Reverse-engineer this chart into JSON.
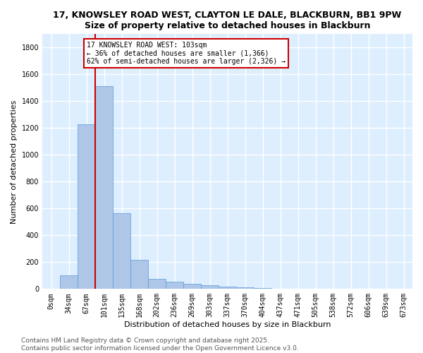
{
  "title_line1": "17, KNOWSLEY ROAD WEST, CLAYTON LE DALE, BLACKBURN, BB1 9PW",
  "title_line2": "Size of property relative to detached houses in Blackburn",
  "xlabel": "Distribution of detached houses by size in Blackburn",
  "ylabel": "Number of detached properties",
  "bar_labels": [
    "0sqm",
    "34sqm",
    "67sqm",
    "101sqm",
    "135sqm",
    "168sqm",
    "202sqm",
    "236sqm",
    "269sqm",
    "303sqm",
    "337sqm",
    "370sqm",
    "404sqm",
    "437sqm",
    "471sqm",
    "505sqm",
    "538sqm",
    "572sqm",
    "606sqm",
    "639sqm",
    "673sqm"
  ],
  "bar_values": [
    0,
    100,
    1230,
    1510,
    565,
    215,
    75,
    52,
    40,
    30,
    20,
    10,
    5,
    3,
    2,
    2,
    1,
    1,
    1,
    0,
    0
  ],
  "bar_color": "#aec6e8",
  "bar_edge_color": "#5b9bd5",
  "property_label": "17 KNOWSLEY ROAD WEST: 103sqm",
  "annotation_line1": "← 36% of detached houses are smaller (1,366)",
  "annotation_line2": "62% of semi-detached houses are larger (2,326) →",
  "vline_color": "#cc0000",
  "vline_x_bar_index": 3,
  "annotation_box_color": "#cc0000",
  "ylim": [
    0,
    1900
  ],
  "yticks": [
    0,
    200,
    400,
    600,
    800,
    1000,
    1200,
    1400,
    1600,
    1800
  ],
  "background_color": "#ddeeff",
  "grid_color": "#ffffff",
  "footer_line1": "Contains HM Land Registry data © Crown copyright and database right 2025.",
  "footer_line2": "Contains public sector information licensed under the Open Government Licence v3.0.",
  "title_fontsize": 9,
  "axis_label_fontsize": 8,
  "tick_fontsize": 7,
  "footer_fontsize": 6.5
}
